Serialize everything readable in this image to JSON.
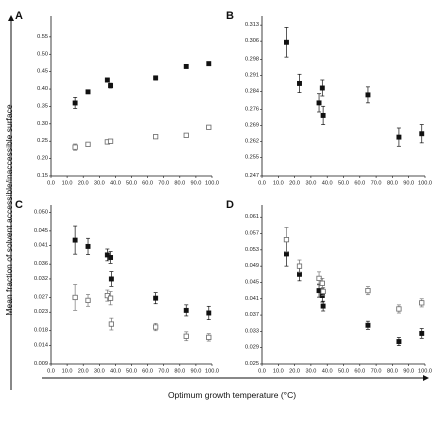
{
  "figure": {
    "ylabel": "Mean fraction of solvent accessible/inaccessible surface",
    "xlabel": "Optimum growth temperature (°C)"
  },
  "chart_data": [
    {
      "panel": "A",
      "type": "scatter",
      "xlim": [
        0,
        100
      ],
      "ylim": [
        0.15,
        0.61
      ],
      "xticks": [
        "0.0",
        "10.0",
        "20.0",
        "30.0",
        "40.0",
        "50.0",
        "60.0",
        "70.0",
        "80.0",
        "90.0",
        "100.0"
      ],
      "yticks": [
        "0.15",
        "0.20",
        "0.25",
        "0.30",
        "0.35",
        "0.40",
        "0.45",
        "0.50",
        "0.55"
      ],
      "series": [
        {
          "marker": "filled",
          "points": [
            {
              "x": 15,
              "y": 0.36,
              "err": 0.016
            },
            {
              "x": 23,
              "y": 0.392,
              "err": 0.004
            },
            {
              "x": 35,
              "y": 0.426,
              "err": 0.005
            },
            {
              "x": 37,
              "y": 0.41,
              "err": 0.007
            },
            {
              "x": 65,
              "y": 0.432,
              "err": 0.006
            },
            {
              "x": 84,
              "y": 0.465,
              "err": 0.004
            },
            {
              "x": 98,
              "y": 0.473,
              "err": 0.004
            }
          ]
        },
        {
          "marker": "open",
          "points": [
            {
              "x": 15,
              "y": 0.233,
              "err": 0.009
            },
            {
              "x": 23,
              "y": 0.241,
              "err": 0.003
            },
            {
              "x": 35,
              "y": 0.248,
              "err": 0.003
            },
            {
              "x": 37,
              "y": 0.25,
              "err": 0.004
            },
            {
              "x": 65,
              "y": 0.263,
              "err": 0.004
            },
            {
              "x": 84,
              "y": 0.267,
              "err": 0.003
            },
            {
              "x": 98,
              "y": 0.29,
              "err": 0.005
            }
          ]
        }
      ]
    },
    {
      "panel": "B",
      "type": "scatter",
      "xlim": [
        0,
        100
      ],
      "ylim": [
        0.247,
        0.317
      ],
      "xticks": [
        "0.0",
        "10.0",
        "20.0",
        "30.0",
        "40.0",
        "50.0",
        "60.0",
        "70.0",
        "80.0",
        "90.0",
        "100.0"
      ],
      "yticks": [
        "0.247",
        "0.255",
        "0.262",
        "0.269",
        "0.276",
        "0.284",
        "0.291",
        "0.298",
        "0.306",
        "0.313"
      ],
      "series": [
        {
          "marker": "filled",
          "points": [
            {
              "x": 15,
              "y": 0.3055,
              "err": 0.0065
            },
            {
              "x": 23,
              "y": 0.2875,
              "err": 0.004
            },
            {
              "x": 35,
              "y": 0.279,
              "err": 0.004
            },
            {
              "x": 37,
              "y": 0.2855,
              "err": 0.0035
            },
            {
              "x": 37.5,
              "y": 0.2735,
              "err": 0.004
            },
            {
              "x": 65,
              "y": 0.2825,
              "err": 0.0035
            },
            {
              "x": 84,
              "y": 0.264,
              "err": 0.004
            },
            {
              "x": 98,
              "y": 0.2655,
              "err": 0.004
            }
          ]
        }
      ]
    },
    {
      "panel": "C",
      "type": "scatter",
      "xlim": [
        0,
        100
      ],
      "ylim": [
        0.009,
        0.052
      ],
      "xticks": [
        "0.0",
        "10.0",
        "20.0",
        "30.0",
        "40.0",
        "50.0",
        "60.0",
        "70.0",
        "80.0",
        "90.0",
        "100.0"
      ],
      "yticks": [
        "0.009",
        "0.014",
        "0.018",
        "0.023",
        "0.027",
        "0.032",
        "0.036",
        "0.041",
        "0.045",
        "0.050"
      ],
      "series": [
        {
          "marker": "filled",
          "points": [
            {
              "x": 15,
              "y": 0.0425,
              "err": 0.0038
            },
            {
              "x": 23,
              "y": 0.0408,
              "err": 0.0022
            },
            {
              "x": 35,
              "y": 0.0385,
              "err": 0.0016
            },
            {
              "x": 37,
              "y": 0.0378,
              "err": 0.0016
            },
            {
              "x": 37.5,
              "y": 0.032,
              "err": 0.002
            },
            {
              "x": 65,
              "y": 0.0268,
              "err": 0.0015
            },
            {
              "x": 84,
              "y": 0.0235,
              "err": 0.0015
            },
            {
              "x": 98,
              "y": 0.0228,
              "err": 0.0018
            }
          ]
        },
        {
          "marker": "open",
          "points": [
            {
              "x": 15,
              "y": 0.027,
              "err": 0.0035
            },
            {
              "x": 23,
              "y": 0.0262,
              "err": 0.0016
            },
            {
              "x": 35,
              "y": 0.0275,
              "err": 0.0015
            },
            {
              "x": 37,
              "y": 0.0268,
              "err": 0.0018
            },
            {
              "x": 37.5,
              "y": 0.0198,
              "err": 0.0016
            },
            {
              "x": 65,
              "y": 0.019,
              "err": 0.001
            },
            {
              "x": 84,
              "y": 0.0165,
              "err": 0.0012
            },
            {
              "x": 98,
              "y": 0.0162,
              "err": 0.001
            }
          ]
        }
      ]
    },
    {
      "panel": "D",
      "type": "scatter",
      "xlim": [
        0,
        100
      ],
      "ylim": [
        0.025,
        0.064
      ],
      "xticks": [
        "0.0",
        "10.0",
        "20.0",
        "30.0",
        "40.0",
        "50.0",
        "60.0",
        "70.0",
        "80.0",
        "90.0",
        "100.0"
      ],
      "yticks": [
        "0.025",
        "0.029",
        "0.033",
        "0.037",
        "0.041",
        "0.045",
        "0.049",
        "0.053",
        "0.057",
        "0.061"
      ],
      "series": [
        {
          "marker": "filled",
          "points": [
            {
              "x": 15,
              "y": 0.052,
              "err": 0.003
            },
            {
              "x": 23,
              "y": 0.047,
              "err": 0.0016
            },
            {
              "x": 35,
              "y": 0.043,
              "err": 0.0016
            },
            {
              "x": 37,
              "y": 0.0418,
              "err": 0.0016
            },
            {
              "x": 37.5,
              "y": 0.0392,
              "err": 0.0012
            },
            {
              "x": 65,
              "y": 0.0345,
              "err": 0.001
            },
            {
              "x": 84,
              "y": 0.0305,
              "err": 0.001
            },
            {
              "x": 98,
              "y": 0.0325,
              "err": 0.0012
            }
          ]
        },
        {
          "marker": "open",
          "points": [
            {
              "x": 15,
              "y": 0.0555,
              "err": 0.003
            },
            {
              "x": 23,
              "y": 0.049,
              "err": 0.0015
            },
            {
              "x": 35,
              "y": 0.046,
              "err": 0.0016
            },
            {
              "x": 37,
              "y": 0.0448,
              "err": 0.0012
            },
            {
              "x": 37.5,
              "y": 0.0428,
              "err": 0.001
            },
            {
              "x": 65,
              "y": 0.043,
              "err": 0.001
            },
            {
              "x": 84,
              "y": 0.0385,
              "err": 0.001
            },
            {
              "x": 98,
              "y": 0.04,
              "err": 0.001
            }
          ]
        }
      ]
    }
  ]
}
